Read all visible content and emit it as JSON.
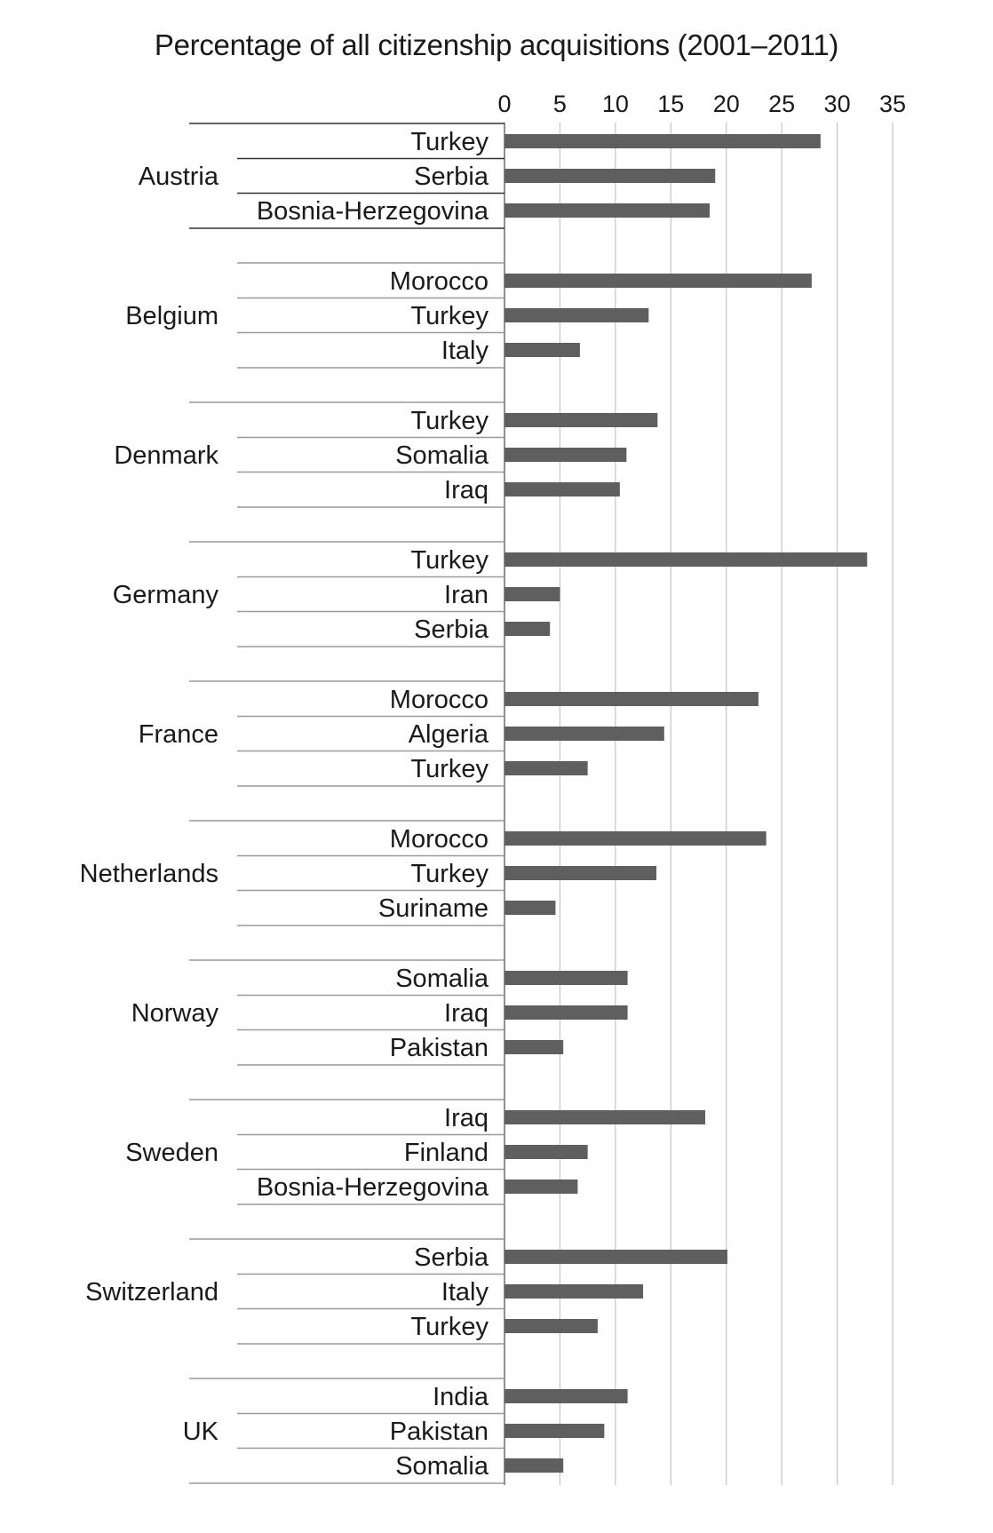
{
  "chart_data": {
    "type": "bar",
    "orientation": "horizontal",
    "title": "Percentage of all citizenship acquisitions (2001–2011)",
    "xlim": [
      0,
      35
    ],
    "xticks": [
      0,
      5,
      10,
      15,
      20,
      25,
      30,
      35
    ],
    "xaxis_position": "top",
    "grid": true,
    "bar_color": "#5f5f5f",
    "groups": [
      {
        "name": "Austria",
        "items": [
          {
            "label": "Turkey",
            "value": 28.5
          },
          {
            "label": "Serbia",
            "value": 19
          },
          {
            "label": "Bosnia-Herzegovina",
            "value": 18.5
          }
        ]
      },
      {
        "name": "Belgium",
        "items": [
          {
            "label": "Morocco",
            "value": 27.7
          },
          {
            "label": "Turkey",
            "value": 13
          },
          {
            "label": "Italy",
            "value": 6.8
          }
        ]
      },
      {
        "name": "Denmark",
        "items": [
          {
            "label": "Turkey",
            "value": 13.8
          },
          {
            "label": "Somalia",
            "value": 11
          },
          {
            "label": "Iraq",
            "value": 10.4
          }
        ]
      },
      {
        "name": "Germany",
        "items": [
          {
            "label": "Turkey",
            "value": 32.7
          },
          {
            "label": "Iran",
            "value": 5
          },
          {
            "label": "Serbia",
            "value": 4.1
          }
        ]
      },
      {
        "name": "France",
        "items": [
          {
            "label": "Morocco",
            "value": 22.9
          },
          {
            "label": "Algeria",
            "value": 14.4
          },
          {
            "label": "Turkey",
            "value": 7.5
          }
        ]
      },
      {
        "name": "Netherlands",
        "items": [
          {
            "label": "Morocco",
            "value": 23.6
          },
          {
            "label": "Turkey",
            "value": 13.7
          },
          {
            "label": "Suriname",
            "value": 4.6
          }
        ]
      },
      {
        "name": "Norway",
        "items": [
          {
            "label": "Somalia",
            "value": 11.1
          },
          {
            "label": "Iraq",
            "value": 11.1
          },
          {
            "label": "Pakistan",
            "value": 5.3
          }
        ]
      },
      {
        "name": "Sweden",
        "items": [
          {
            "label": "Iraq",
            "value": 18.1
          },
          {
            "label": "Finland",
            "value": 7.5
          },
          {
            "label": "Bosnia-Herzegovina",
            "value": 6.6
          }
        ]
      },
      {
        "name": "Switzerland",
        "items": [
          {
            "label": "Serbia",
            "value": 20.1
          },
          {
            "label": "Italy",
            "value": 12.5
          },
          {
            "label": "Turkey",
            "value": 8.4
          }
        ]
      },
      {
        "name": "UK",
        "items": [
          {
            "label": "India",
            "value": 11.1
          },
          {
            "label": "Pakistan",
            "value": 9
          },
          {
            "label": "Somalia",
            "value": 5.3
          }
        ]
      }
    ]
  }
}
